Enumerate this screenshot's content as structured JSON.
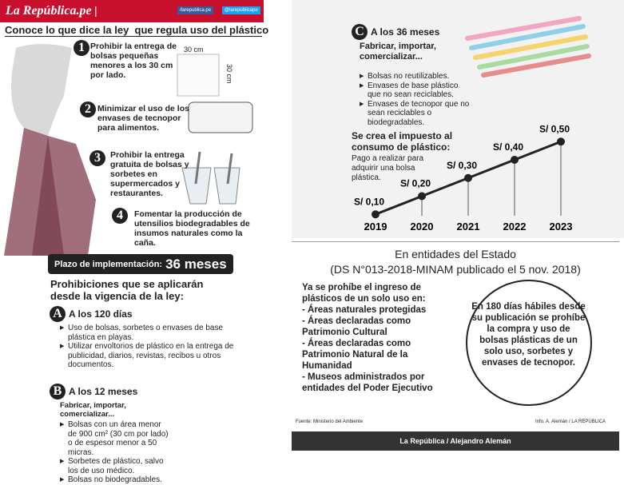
{
  "header": {
    "brand": "La República.pe",
    "separator": "|",
    "facebook": "/larepublica.pe",
    "twitter": "@larepublicape"
  },
  "headline": "Conoce lo que dice la ley  que regula uso del plástico",
  "measures": [
    {
      "number": "1",
      "text": "Prohibir la entrega de bolsas pequeñas menores a los 30 cm por lado."
    },
    {
      "number": "2",
      "text": "Minimizar el uso de los envases de tecnopor para alimentos."
    },
    {
      "number": "3",
      "text": "Prohibir la entrega gratuita de bolsas y sorbetes en supermercados y restaurantes."
    },
    {
      "number": "4",
      "text": "Fomentar la producción de utensilios biodegradables de insumos naturales como la caña."
    }
  ],
  "dimensions": [
    "30 cm",
    "30 cm"
  ],
  "implementation": {
    "label": "Plazo de implementación:",
    "value": "36 meses"
  },
  "prohibitions_title": "Prohibiciones que se aplicarán desde la vigencia de la ley:",
  "phases": [
    {
      "letter": "A",
      "title": "A los 120 días",
      "items": [
        "Uso de bolsas, sorbetes o envases de base plástica en playas.",
        "Utilizar envoltorios de plástico en la entrega de publicidad, diarios, revistas, recibos u otros documentos."
      ]
    },
    {
      "letter": "B",
      "title": "A los 12 meses",
      "subtitle": "Fabricar, importar, comercializar...",
      "items": [
        "Bolsas con un área menor de 900 cm² (30 cm por lado) o de espesor menor a 50 micras.",
        "Sorbetes de plástico, salvo los de uso médico.",
        "Bolsas no biodegradables."
      ]
    },
    {
      "letter": "C",
      "title": "A los 36 meses",
      "subtitle": "Fabricar, importar, comercializar...",
      "items": [
        "Bolsas no reutilizables.",
        "Envases de base plástico que no sean reciclables.",
        "Envases de tecnopor que no sean reciclables o biodegradables."
      ]
    }
  ],
  "chart_data": {
    "type": "line",
    "title": "Se crea el impuesto al consumo de plástico:",
    "subtitle": "Pago a realizar para adquirir una bolsa plástica.",
    "categories": [
      "2019",
      "2020",
      "2021",
      "2022",
      "2023"
    ],
    "values": [
      0.1,
      0.2,
      0.3,
      0.4,
      0.5
    ],
    "value_labels": [
      "S/ 0,10",
      "S/ 0,20",
      "S/ 0,30",
      "S/ 0,40",
      "S/ 0,50"
    ],
    "color": "#222222"
  },
  "state": {
    "title": "En entidades del Estado",
    "decree": "(DS N°013-2018-MINAM publicado el 5 nov. 2018)",
    "intro": "Ya se prohíbe el ingreso de plásticos de un solo uso en:",
    "items": [
      "- Áreas naturales protegidas",
      "- Áreas declaradas como Patrimonio Cultural",
      "- Áreas declaradas como Patrimonio Natural de la Humanidad",
      "- Museos administrados por entidades del Poder Ejecutivo"
    ],
    "circle": "En 180 días hábiles desde su publicación se prohíbe la compra  y uso de bolsas plásticas de un solo uso, sorbetes y envases de tecnopor."
  },
  "source": "Fuente: Ministerio del Ambiente",
  "credit": "Info. A. Alemán / LA REPÚBLICA",
  "footer": "La República / Alejandro Alemán"
}
